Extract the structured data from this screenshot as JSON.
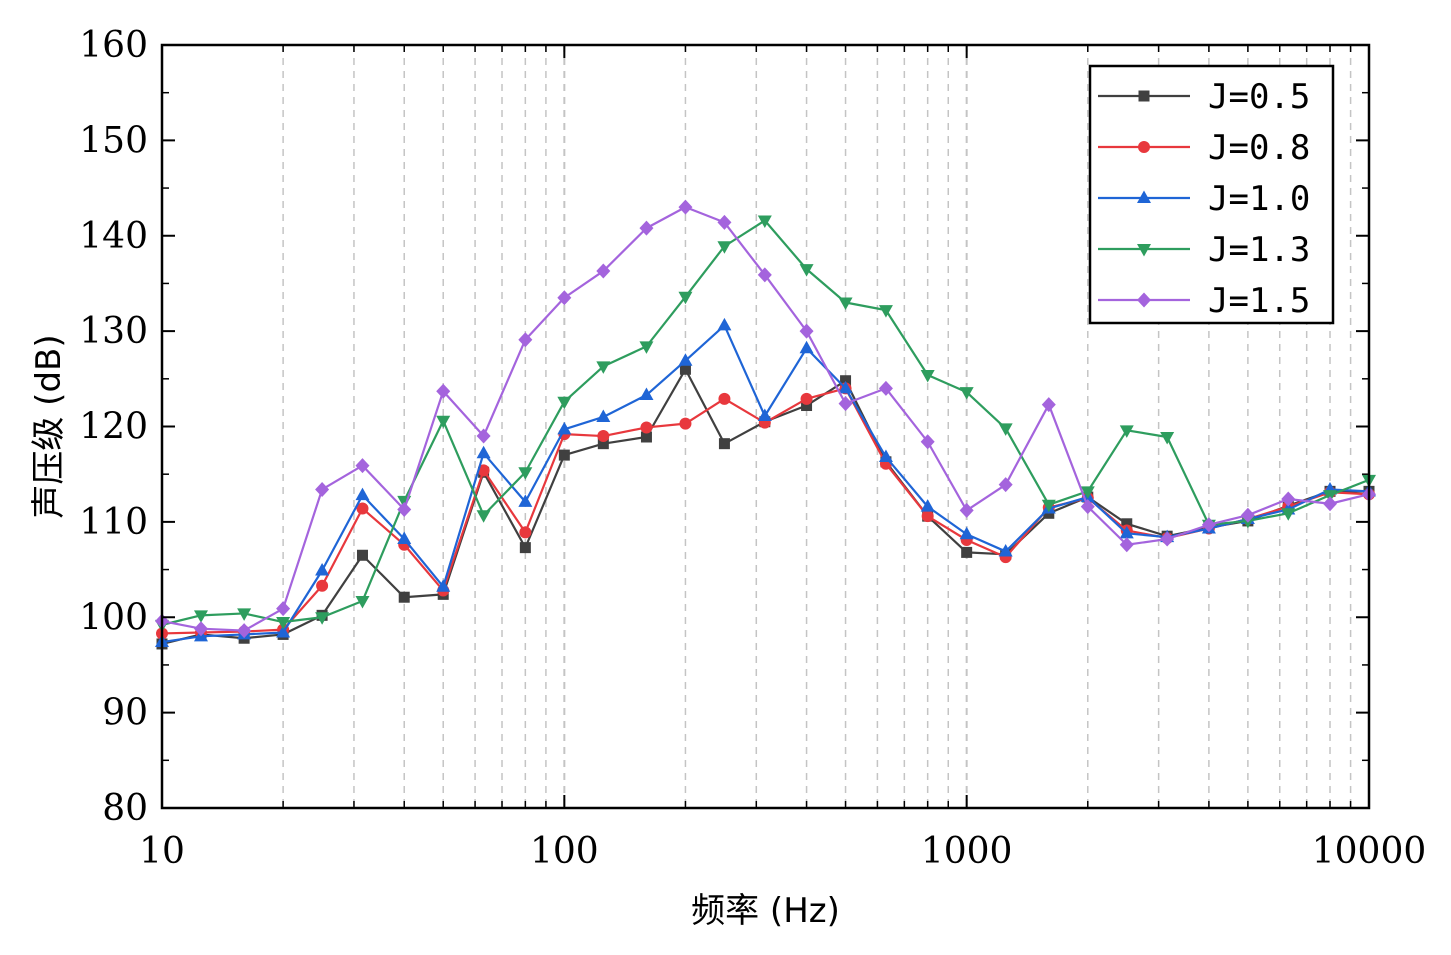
{
  "chart_data": {
    "type": "line",
    "xlabel": "频率 (Hz)",
    "ylabel": "声压级 (dB)",
    "x_scale": "log",
    "xlim": [
      10,
      10000
    ],
    "ylim": [
      80,
      160
    ],
    "x_ticks": [
      10,
      100,
      1000,
      10000
    ],
    "x_tick_labels": [
      "10",
      "100",
      "1000",
      "10000"
    ],
    "y_ticks": [
      80,
      90,
      100,
      110,
      120,
      130,
      140,
      150,
      160
    ],
    "y_tick_labels": [
      "80",
      "90",
      "100",
      "110",
      "120",
      "130",
      "140",
      "150",
      "160"
    ],
    "grid": "vertical dashed at minor/major decades",
    "legend_position": "top-right",
    "x": [
      10,
      12.5,
      16,
      20,
      25,
      31.5,
      40,
      50,
      63,
      80,
      100,
      125,
      160,
      200,
      250,
      315,
      400,
      500,
      630,
      800,
      1000,
      1250,
      1600,
      2000,
      2500,
      3150,
      4000,
      5000,
      6300,
      8000,
      10000
    ],
    "series": [
      {
        "name": "J=0.5",
        "color": "#404040",
        "marker": "square",
        "values": [
          97.2,
          98.2,
          97.8,
          98.2,
          100.2,
          106.5,
          102.1,
          102.4,
          115.2,
          107.3,
          117.0,
          118.2,
          118.9,
          126.0,
          118.2,
          120.5,
          122.2,
          124.8,
          116.3,
          110.6,
          106.8,
          106.6,
          110.9,
          112.6,
          109.8,
          108.5,
          109.4,
          110.1,
          111.7,
          113.2,
          113.2
        ]
      },
      {
        "name": "J=0.8",
        "color": "#e8383d",
        "marker": "circle",
        "values": [
          98.3,
          98.4,
          98.5,
          98.7,
          103.3,
          111.4,
          107.6,
          102.8,
          115.4,
          108.9,
          119.2,
          119.0,
          119.9,
          120.3,
          122.9,
          120.4,
          122.9,
          124.0,
          116.1,
          110.6,
          108.1,
          106.3,
          111.5,
          112.5,
          109.1,
          108.3,
          109.3,
          110.3,
          111.6,
          113.1,
          112.9
        ]
      },
      {
        "name": "J=1.0",
        "color": "#1f65d6",
        "marker": "triangle-up",
        "values": [
          97.4,
          98.0,
          98.2,
          98.4,
          104.9,
          112.8,
          108.2,
          103.2,
          117.2,
          112.1,
          119.7,
          121.0,
          123.3,
          126.9,
          130.6,
          121.1,
          128.2,
          124.0,
          116.8,
          111.6,
          108.7,
          106.9,
          111.4,
          112.6,
          108.8,
          108.4,
          109.3,
          110.3,
          111.3,
          113.4,
          113.2
        ]
      },
      {
        "name": "J=1.3",
        "color": "#2e9d5e",
        "marker": "triangle-down",
        "values": [
          99.2,
          100.2,
          100.4,
          99.5,
          100.0,
          101.7,
          112.2,
          120.6,
          110.7,
          115.2,
          122.6,
          126.3,
          128.4,
          133.6,
          138.9,
          141.6,
          136.5,
          133.0,
          132.2,
          125.4,
          123.6,
          119.8,
          111.8,
          113.2,
          119.6,
          118.9,
          109.7,
          110.1,
          110.9,
          112.8,
          114.4
        ]
      },
      {
        "name": "J=1.5",
        "color": "#a464dd",
        "marker": "diamond",
        "values": [
          99.6,
          98.8,
          98.6,
          100.9,
          113.4,
          115.9,
          111.3,
          123.7,
          119.0,
          129.1,
          133.5,
          136.3,
          140.8,
          143.0,
          141.4,
          135.9,
          130.0,
          122.4,
          124.0,
          118.4,
          111.2,
          113.9,
          122.3,
          111.6,
          107.6,
          108.2,
          109.7,
          110.7,
          112.4,
          111.9,
          112.9
        ]
      }
    ]
  }
}
